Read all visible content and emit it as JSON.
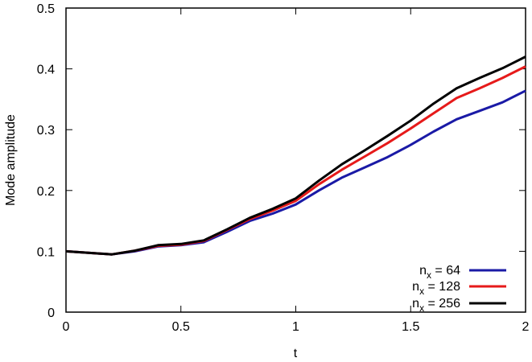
{
  "chart_data": {
    "type": "line",
    "xlabel": "t",
    "ylabel": "Mode amplitude",
    "xlim": [
      0,
      2
    ],
    "ylim": [
      0,
      0.5
    ],
    "x_ticks": [
      "0",
      "0.5",
      "1",
      "1.5",
      "2"
    ],
    "y_ticks": [
      "0",
      "0.1",
      "0.2",
      "0.3",
      "0.4",
      "0.5"
    ],
    "grid": false,
    "legend_position": "bottom-right",
    "series": [
      {
        "legend_base": "n",
        "legend_sub": "x",
        "legend_value": " = 64",
        "color": "#1a1aa6",
        "x": [
          0,
          0.2,
          0.3,
          0.4,
          0.5,
          0.6,
          0.7,
          0.8,
          0.9,
          1.0,
          1.1,
          1.2,
          1.3,
          1.4,
          1.5,
          1.6,
          1.7,
          1.8,
          1.9,
          2.0
        ],
        "y": [
          0.1,
          0.095,
          0.1,
          0.108,
          0.11,
          0.115,
          0.132,
          0.15,
          0.162,
          0.177,
          0.2,
          0.221,
          0.238,
          0.255,
          0.275,
          0.297,
          0.317,
          0.331,
          0.345,
          0.364
        ]
      },
      {
        "legend_base": "n",
        "legend_sub": "x",
        "legend_value": " = 128",
        "color": "#e61a1a",
        "x": [
          0,
          0.2,
          0.3,
          0.4,
          0.5,
          0.6,
          0.7,
          0.8,
          0.9,
          1.0,
          1.1,
          1.2,
          1.3,
          1.4,
          1.5,
          1.6,
          1.7,
          1.8,
          1.9,
          2.0
        ],
        "y": [
          0.1,
          0.095,
          0.101,
          0.109,
          0.111,
          0.117,
          0.135,
          0.153,
          0.167,
          0.183,
          0.21,
          0.234,
          0.256,
          0.278,
          0.302,
          0.327,
          0.352,
          0.368,
          0.385,
          0.404
        ]
      },
      {
        "legend_base": "n",
        "legend_sub": "x",
        "legend_value": " = 256",
        "color": "#000000",
        "x": [
          0,
          0.2,
          0.3,
          0.4,
          0.5,
          0.6,
          0.7,
          0.8,
          0.9,
          1.0,
          1.1,
          1.2,
          1.3,
          1.4,
          1.5,
          1.6,
          1.7,
          1.8,
          1.9,
          2.0
        ],
        "y": [
          0.1,
          0.095,
          0.101,
          0.11,
          0.112,
          0.118,
          0.136,
          0.155,
          0.17,
          0.187,
          0.216,
          0.243,
          0.266,
          0.29,
          0.315,
          0.343,
          0.368,
          0.385,
          0.401,
          0.42
        ]
      }
    ]
  }
}
